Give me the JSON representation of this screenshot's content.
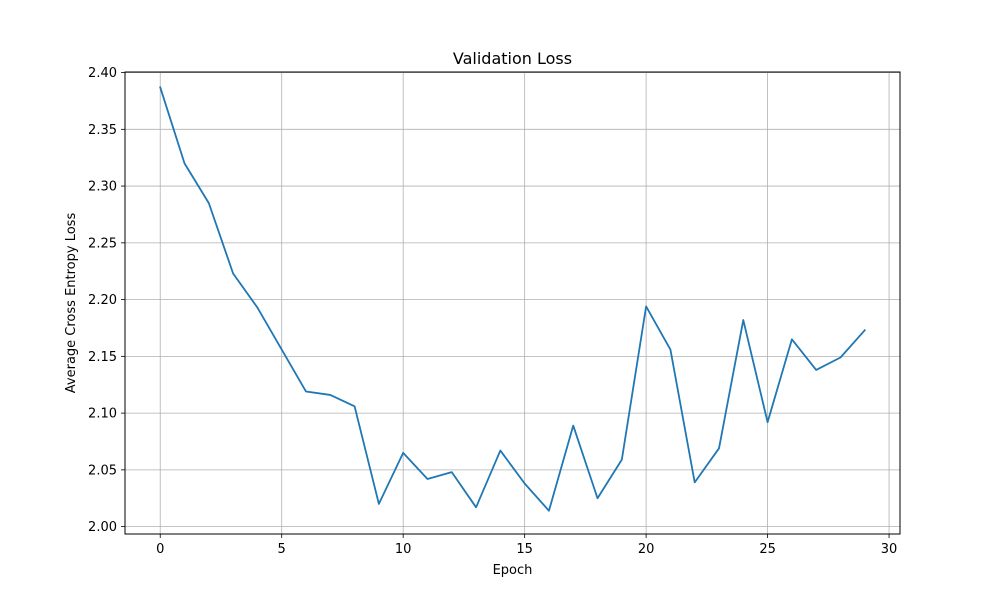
{
  "chart_data": {
    "type": "line",
    "title": "Validation Loss",
    "xlabel": "Epoch",
    "ylabel": "Average Cross Entropy Loss",
    "xlim": [
      -1.45,
      30.45
    ],
    "ylim": [
      1.9935,
      2.4005
    ],
    "xticks": [
      0,
      5,
      10,
      15,
      20,
      25,
      30
    ],
    "xtick_labels": [
      "0",
      "5",
      "10",
      "15",
      "20",
      "25",
      "30"
    ],
    "yticks": [
      2.0,
      2.05,
      2.1,
      2.15,
      2.2,
      2.25,
      2.3,
      2.35,
      2.4
    ],
    "ytick_labels": [
      "2.00",
      "2.05",
      "2.10",
      "2.15",
      "2.20",
      "2.25",
      "2.30",
      "2.35",
      "2.40"
    ],
    "grid": true,
    "series": [
      {
        "color": "#1f77b4",
        "x": [
          0,
          1,
          2,
          3,
          4,
          5,
          6,
          7,
          8,
          9,
          10,
          11,
          12,
          13,
          14,
          15,
          16,
          17,
          18,
          19,
          20,
          21,
          22,
          23,
          24,
          25,
          26,
          27,
          28,
          29
        ],
        "y": [
          2.387,
          2.32,
          2.285,
          2.223,
          2.193,
          2.156,
          2.119,
          2.116,
          2.106,
          2.02,
          2.065,
          2.042,
          2.048,
          2.017,
          2.067,
          2.038,
          2.014,
          2.089,
          2.025,
          2.059,
          2.194,
          2.156,
          2.039,
          2.069,
          2.182,
          2.092,
          2.165,
          2.138,
          2.149,
          2.173
        ]
      }
    ]
  }
}
